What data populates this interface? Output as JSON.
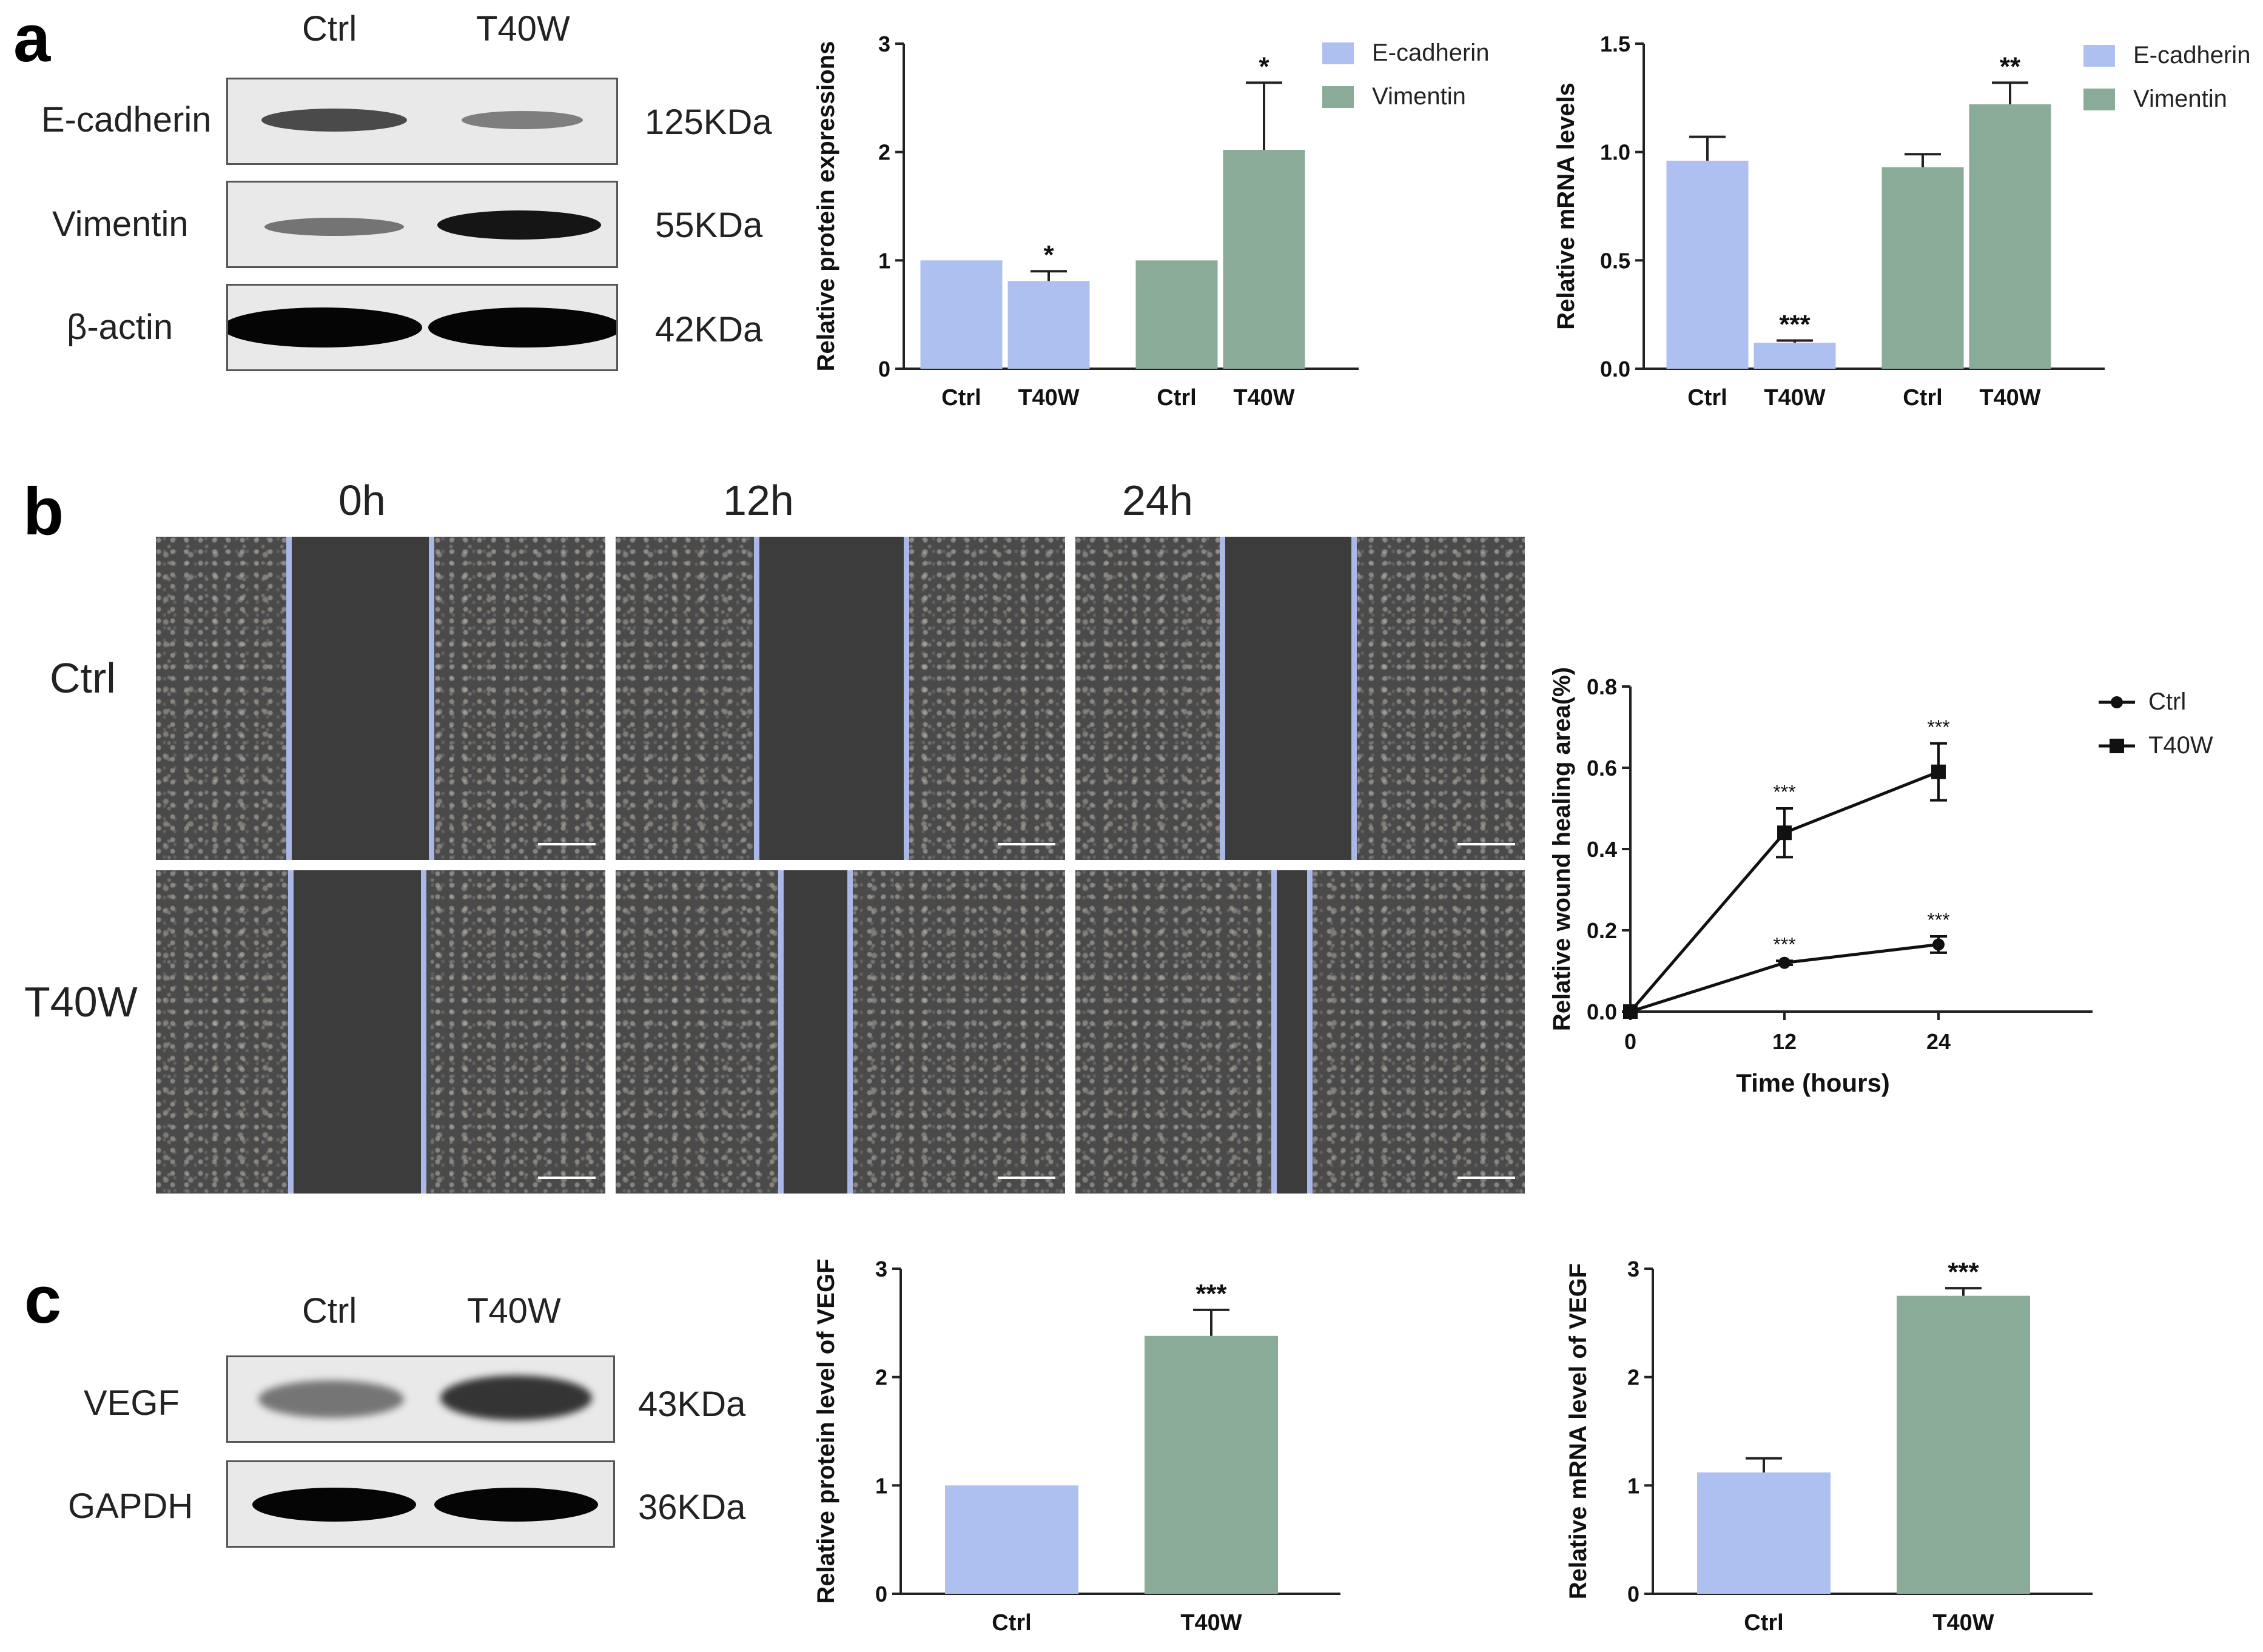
{
  "panels": {
    "a": "a",
    "b": "b",
    "c": "c"
  },
  "colors": {
    "ecadherin": "#aec0ef",
    "vimentin": "#8aab97",
    "axis": "#222222",
    "edge_line": "#a9b8e6"
  },
  "blot_a": {
    "columns": [
      "Ctrl",
      "T40W"
    ],
    "rows": [
      {
        "label": "E-cadherin",
        "size": "125KDa",
        "ctrl_intensity": 0.75,
        "t40w_intensity": 0.5
      },
      {
        "label": "Vimentin",
        "size": "55KDa",
        "ctrl_intensity": 0.55,
        "t40w_intensity": 0.95
      },
      {
        "label": "β-actin",
        "size": "42KDa",
        "ctrl_intensity": 1.0,
        "t40w_intensity": 1.0
      }
    ]
  },
  "wound": {
    "times": [
      "0h",
      "12h",
      "24h"
    ],
    "groups": [
      "Ctrl",
      "T40W"
    ]
  },
  "blot_c": {
    "columns": [
      "Ctrl",
      "T40W"
    ],
    "rows": [
      {
        "label": "VEGF",
        "size": "43KDa",
        "ctrl_intensity": 0.55,
        "t40w_intensity": 0.85
      },
      {
        "label": "GAPDH",
        "size": "36KDa",
        "ctrl_intensity": 1.0,
        "t40w_intensity": 1.0
      }
    ]
  },
  "chart_data": [
    {
      "type": "bar",
      "id": "protein-expressions",
      "ylabel": "Relative protein expressions",
      "ylim": [
        0,
        3
      ],
      "yticks": [
        "0",
        "1",
        "2",
        "3"
      ],
      "categories": [
        "Ctrl",
        "T40W",
        "Ctrl",
        "T40W"
      ],
      "values": [
        1.0,
        0.81,
        1.0,
        2.02
      ],
      "errors": [
        0,
        0.09,
        0,
        0.62
      ],
      "bar_series": [
        "E-cadherin",
        "E-cadherin",
        "Vimentin",
        "Vimentin"
      ],
      "significance": [
        "",
        "*",
        "",
        "*"
      ],
      "series": [
        {
          "name": "E-cadherin"
        },
        {
          "name": "Vimentin"
        }
      ],
      "legend": "top-right"
    },
    {
      "type": "bar",
      "id": "mrna-levels",
      "ylabel": "Relative mRNA levels",
      "ylim": [
        0,
        1.5
      ],
      "yticks": [
        "0.0",
        "0.5",
        "1.0",
        "1.5"
      ],
      "categories": [
        "Ctrl",
        "T40W",
        "Ctrl",
        "T40W"
      ],
      "values": [
        0.96,
        0.12,
        0.93,
        1.22
      ],
      "errors": [
        0.11,
        0.01,
        0.06,
        0.1
      ],
      "bar_series": [
        "E-cadherin",
        "E-cadherin",
        "Vimentin",
        "Vimentin"
      ],
      "significance": [
        "",
        "***",
        "",
        "**"
      ],
      "series": [
        {
          "name": "E-cadherin"
        },
        {
          "name": "Vimentin"
        }
      ],
      "legend": "top-right"
    },
    {
      "type": "line",
      "id": "wound-healing",
      "xlabel": "Time (hours)",
      "ylabel": "Relative wound healing area(%)",
      "xlim": [
        0,
        36
      ],
      "ylim": [
        0,
        0.8
      ],
      "xticks": [
        "0",
        "12",
        "24"
      ],
      "yticks": [
        "0.0",
        "0.2",
        "0.4",
        "0.6",
        "0.8"
      ],
      "x": [
        0,
        12,
        24
      ],
      "series": [
        {
          "name": "Ctrl",
          "marker": "circle",
          "values": [
            0.0,
            0.12,
            0.165
          ],
          "errors": [
            0,
            0.005,
            0.02
          ],
          "significance": [
            "",
            "***",
            "***"
          ]
        },
        {
          "name": "T40W",
          "marker": "square",
          "values": [
            0.0,
            0.44,
            0.59
          ],
          "errors": [
            0,
            0.06,
            0.07
          ],
          "significance": [
            "",
            "***",
            "***"
          ]
        }
      ],
      "legend": "top-right"
    },
    {
      "type": "bar",
      "id": "vegf-protein",
      "ylabel": "Relative protein level of VEGF",
      "ylim": [
        0,
        3
      ],
      "yticks": [
        "0",
        "1",
        "2",
        "3"
      ],
      "categories": [
        "Ctrl",
        "T40W"
      ],
      "values": [
        1.0,
        2.38
      ],
      "errors": [
        0,
        0.24
      ],
      "bar_series": [
        "Ctrl",
        "T40W"
      ],
      "significance": [
        "",
        "***"
      ]
    },
    {
      "type": "bar",
      "id": "vegf-mrna",
      "ylabel": "Relative mRNA  level of VEGF",
      "ylim": [
        0,
        3
      ],
      "yticks": [
        "0",
        "1",
        "2",
        "3"
      ],
      "categories": [
        "Ctrl",
        "T40W"
      ],
      "values": [
        1.12,
        2.75
      ],
      "errors": [
        0.13,
        0.07
      ],
      "bar_series": [
        "Ctrl",
        "T40W"
      ],
      "significance": [
        "",
        "***"
      ]
    }
  ]
}
